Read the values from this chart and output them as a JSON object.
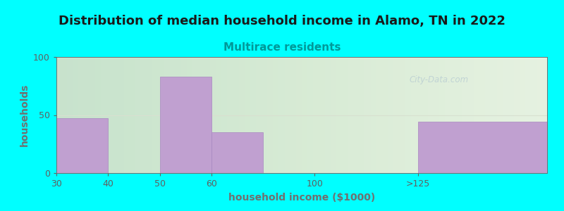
{
  "title": "Distribution of median household income in Alamo, TN in 2022",
  "subtitle": "Multirace residents",
  "xlabel": "household income ($1000)",
  "ylabel": "households",
  "background_color": "#00FFFF",
  "bar_color": "#c0a0d0",
  "bar_edge_color": "#a888c0",
  "categories": [
    "30",
    "40",
    "50",
    "60",
    "100",
    ">125"
  ],
  "bar_left_edges": [
    0,
    1,
    2,
    3,
    5,
    7
  ],
  "bar_widths": [
    1,
    1,
    1,
    1,
    1,
    2.5
  ],
  "bar_heights": [
    47,
    0,
    83,
    35,
    0,
    44
  ],
  "xlim": [
    0,
    9.5
  ],
  "ylim": [
    0,
    100
  ],
  "yticks": [
    0,
    50,
    100
  ],
  "xtick_positions": [
    0,
    1,
    2,
    3,
    5,
    7
  ],
  "title_fontsize": 13,
  "subtitle_fontsize": 11,
  "subtitle_color": "#009999",
  "axis_label_fontsize": 10,
  "tick_fontsize": 9,
  "watermark_text": "City-Data.com",
  "watermark_color": "#a8bece",
  "watermark_alpha": 0.55,
  "axis_color": "#707070",
  "tick_color": "#606060",
  "title_color": "#1a1a1a",
  "grid_color": "#d8e0d0",
  "plot_left_color": "#e6f2e0",
  "plot_right_color": "#f8f8f4"
}
